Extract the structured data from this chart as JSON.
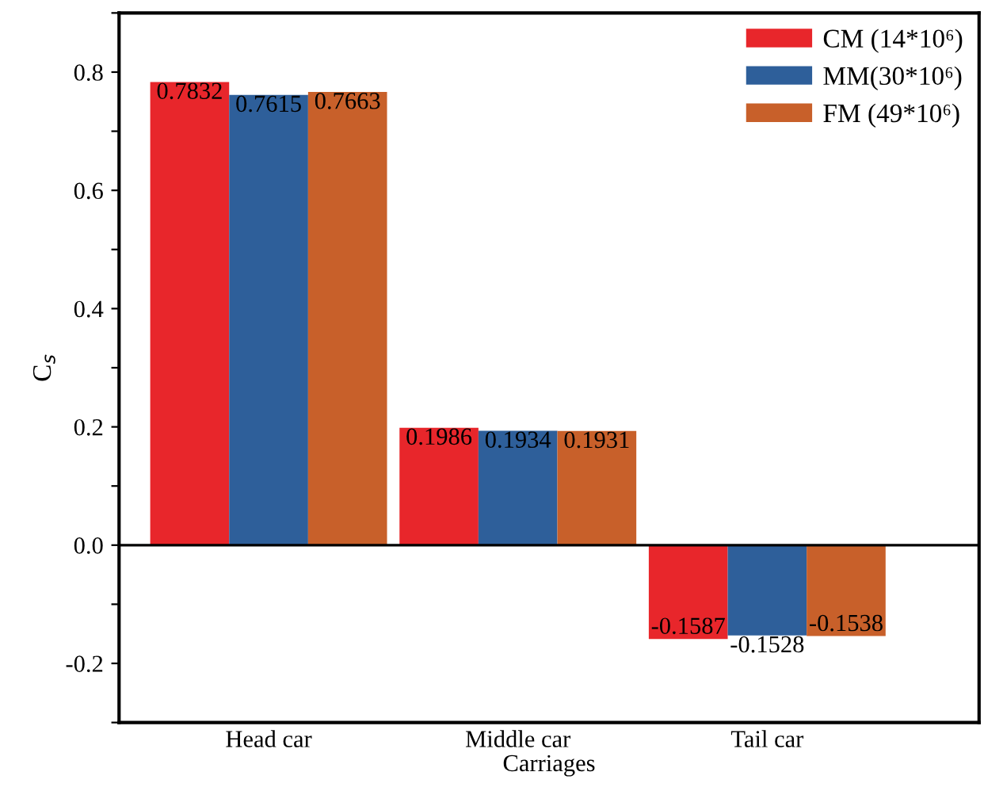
{
  "chart_data": {
    "type": "bar",
    "xlabel": "Carriages",
    "ylabel": "C$_{s}$",
    "categories": [
      "Head car",
      "Middle car",
      "Tail car"
    ],
    "series": [
      {
        "name": "CM (14*10⁶)",
        "color": "#e8262b",
        "values": [
          0.7832,
          0.1986,
          -0.1587
        ]
      },
      {
        "name": "MM(30*10⁶)",
        "color": "#2e5f9a",
        "values": [
          0.7615,
          0.1934,
          -0.1528
        ]
      },
      {
        "name": "FM (49*10⁶)",
        "color": "#c8602a",
        "values": [
          0.7663,
          0.1931,
          -0.1538
        ]
      }
    ],
    "ylim": [
      -0.3,
      0.9
    ],
    "yticks": [
      {
        "value": -0.3,
        "label": null
      },
      -0.2,
      {
        "value": -0.1,
        "label": null
      },
      {
        "value": 0,
        "label": "0.0"
      },
      {
        "value": 0.1,
        "label": null
      },
      0.2,
      {
        "value": 0.3,
        "label": null
      },
      0.4,
      {
        "value": 0.5,
        "label": null
      },
      0.6,
      {
        "value": 0.7,
        "label": null
      },
      0.8,
      {
        "value": 0.9,
        "label": null
      }
    ],
    "ref_lines": [
      {
        "axis": "y",
        "value": 0,
        "color": "#000000"
      }
    ],
    "data_labels": true,
    "legend": "top right",
    "grid": false
  }
}
